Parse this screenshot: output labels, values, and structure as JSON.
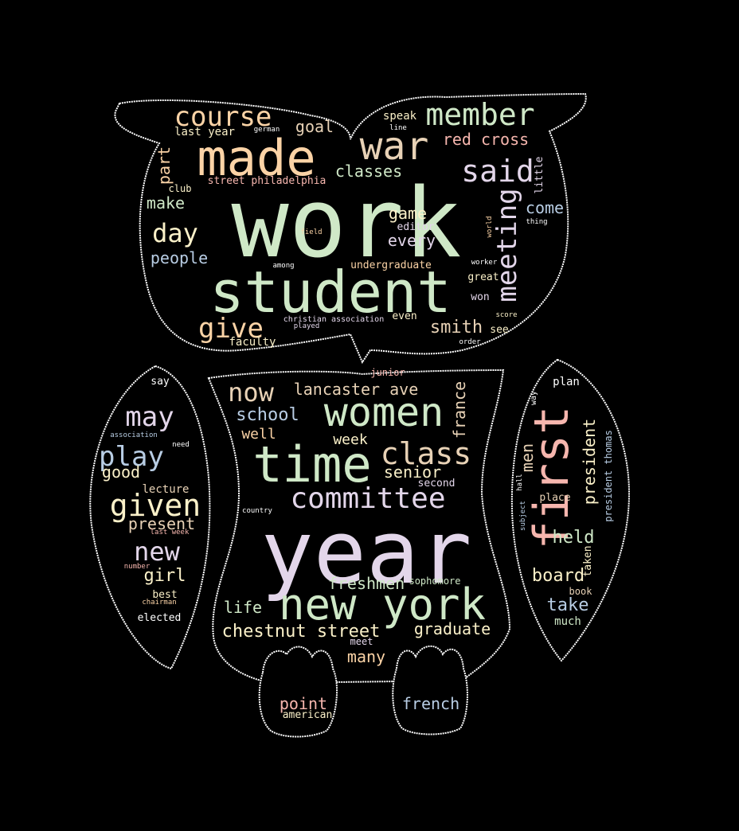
{
  "palette": {
    "green": "#cfe8c7",
    "peach": "#fbd3a6",
    "cream": "#fbf1c9",
    "lavender": "#e3d6ea",
    "blue": "#b8cde4",
    "pink": "#f6b6ae",
    "tan": "#e8d2b6",
    "white": "#ffffff",
    "outline": "#ffffff",
    "background": "#000000"
  },
  "words": [
    {
      "text": "work",
      "color": "green"
    },
    {
      "text": "year",
      "color": "lavender"
    },
    {
      "text": "student",
      "color": "green"
    },
    {
      "text": "made",
      "color": "peach"
    },
    {
      "text": "time",
      "color": "green"
    },
    {
      "text": "new york",
      "color": "green"
    },
    {
      "text": "women",
      "color": "green"
    },
    {
      "text": "first",
      "color": "pink"
    },
    {
      "text": "war",
      "color": "tan"
    },
    {
      "text": "member",
      "color": "green"
    },
    {
      "text": "course",
      "color": "peach"
    },
    {
      "text": "committee",
      "color": "lavender"
    },
    {
      "text": "class",
      "color": "tan"
    },
    {
      "text": "said",
      "color": "lavender"
    },
    {
      "text": "meeting",
      "color": "lavender"
    },
    {
      "text": "given",
      "color": "cream"
    },
    {
      "text": "play",
      "color": "blue"
    },
    {
      "text": "may",
      "color": "lavender"
    },
    {
      "text": "now",
      "color": "tan"
    },
    {
      "text": "give",
      "color": "peach"
    },
    {
      "text": "day",
      "color": "cream"
    },
    {
      "text": "new",
      "color": "lavender"
    },
    {
      "text": "red cross",
      "color": "pink"
    },
    {
      "text": "chestnut street",
      "color": "cream"
    },
    {
      "text": "lancaster ave",
      "color": "tan"
    },
    {
      "text": "freshmen",
      "color": "green"
    },
    {
      "text": "graduate",
      "color": "cream"
    },
    {
      "text": "school",
      "color": "blue"
    },
    {
      "text": "smith",
      "color": "tan"
    },
    {
      "text": "people",
      "color": "blue"
    },
    {
      "text": "classes",
      "color": "green"
    },
    {
      "text": "goal",
      "color": "tan"
    },
    {
      "text": "make",
      "color": "green"
    },
    {
      "text": "part",
      "color": "peach"
    },
    {
      "text": "every",
      "color": "lavender"
    },
    {
      "text": "game",
      "color": "cream"
    },
    {
      "text": "come",
      "color": "blue"
    },
    {
      "text": "senior",
      "color": "cream"
    },
    {
      "text": "week",
      "color": "cream"
    },
    {
      "text": "well",
      "color": "peach"
    },
    {
      "text": "present",
      "color": "tan"
    },
    {
      "text": "girl",
      "color": "cream"
    },
    {
      "text": "good",
      "color": "cream"
    },
    {
      "text": "life",
      "color": "green"
    },
    {
      "text": "many",
      "color": "peach"
    },
    {
      "text": "point",
      "color": "pink"
    },
    {
      "text": "french",
      "color": "blue"
    },
    {
      "text": "held",
      "color": "green"
    },
    {
      "text": "board",
      "color": "cream"
    },
    {
      "text": "take",
      "color": "blue"
    },
    {
      "text": "president",
      "color": "cream"
    },
    {
      "text": "men",
      "color": "tan"
    },
    {
      "text": "france",
      "color": "tan"
    },
    {
      "text": "last year",
      "color": "cream"
    },
    {
      "text": "faculty",
      "color": "cream"
    },
    {
      "text": "street philadelphia",
      "color": "pink"
    },
    {
      "text": "undergraduate",
      "color": "peach"
    },
    {
      "text": "editor",
      "color": "lavender"
    },
    {
      "text": "lecture",
      "color": "tan"
    },
    {
      "text": "elected",
      "color": "white"
    },
    {
      "text": "best",
      "color": "cream"
    },
    {
      "text": "plan",
      "color": "white"
    },
    {
      "text": "place",
      "color": "tan"
    },
    {
      "text": "book",
      "color": "tan"
    },
    {
      "text": "much",
      "color": "green"
    },
    {
      "text": "taken",
      "color": "cream"
    },
    {
      "text": "president thomas",
      "color": "blue"
    },
    {
      "text": "club",
      "color": "cream"
    },
    {
      "text": "little",
      "color": "lavender"
    },
    {
      "text": "speak",
      "color": "cream"
    },
    {
      "text": "even",
      "color": "cream"
    },
    {
      "text": "great",
      "color": "cream"
    },
    {
      "text": "won",
      "color": "lavender"
    },
    {
      "text": "see",
      "color": "cream"
    },
    {
      "text": "second",
      "color": "lavender"
    },
    {
      "text": "american",
      "color": "cream"
    },
    {
      "text": "sophomore",
      "color": "green"
    },
    {
      "text": "junior",
      "color": "pink"
    },
    {
      "text": "say",
      "color": "white"
    },
    {
      "text": "meet",
      "color": "lavender"
    },
    {
      "text": "thing",
      "color": "white"
    },
    {
      "text": "worker",
      "color": "white"
    },
    {
      "text": "score",
      "color": "cream"
    },
    {
      "text": "order",
      "color": "white"
    },
    {
      "text": "among",
      "color": "white"
    },
    {
      "text": "field",
      "color": "peach"
    },
    {
      "text": "german",
      "color": "white"
    },
    {
      "text": "line",
      "color": "white"
    },
    {
      "text": "christian association",
      "color": "lavender"
    },
    {
      "text": "played",
      "color": "lavender"
    },
    {
      "text": "world",
      "color": "peach"
    },
    {
      "text": "association",
      "color": "blue"
    },
    {
      "text": "need",
      "color": "white"
    },
    {
      "text": "last week",
      "color": "pink"
    },
    {
      "text": "number",
      "color": "pink"
    },
    {
      "text": "chairman",
      "color": "peach"
    },
    {
      "text": "country",
      "color": "white"
    },
    {
      "text": "way",
      "color": "white"
    },
    {
      "text": "hall",
      "color": "white"
    },
    {
      "text": "subject",
      "color": "blue"
    }
  ]
}
